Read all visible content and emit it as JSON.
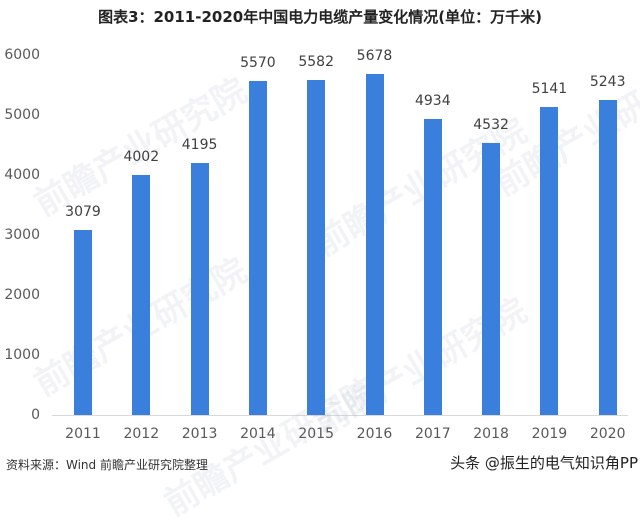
{
  "title": "图表3：2011-2020年中国电力电缆产量变化情况(单位：万千米)",
  "source": "资料来源：Wind 前瞻产业研究院整理",
  "credit": "头条 @振生的电气知识角PP",
  "watermark": "前瞻产业研究院",
  "colors": {
    "bar": "#3a7fdc",
    "axis": "#d9d9d9",
    "tick_text": "#595959"
  },
  "chart_data": {
    "type": "bar",
    "title": "图表3：2011-2020年中国电力电缆产量变化情况(单位：万千米)",
    "xlabel": "",
    "ylabel": "",
    "unit": "万千米",
    "categories": [
      "2011",
      "2012",
      "2013",
      "2014",
      "2015",
      "2016",
      "2017",
      "2018",
      "2019",
      "2020"
    ],
    "values": [
      3079,
      4002,
      4195,
      5570,
      5582,
      5678,
      4934,
      4532,
      5141,
      5243
    ],
    "ylim": [
      0,
      6000
    ],
    "yticks": [
      0,
      1000,
      2000,
      3000,
      4000,
      5000,
      6000
    ],
    "grid": false,
    "legend": null,
    "data_labels": true
  }
}
